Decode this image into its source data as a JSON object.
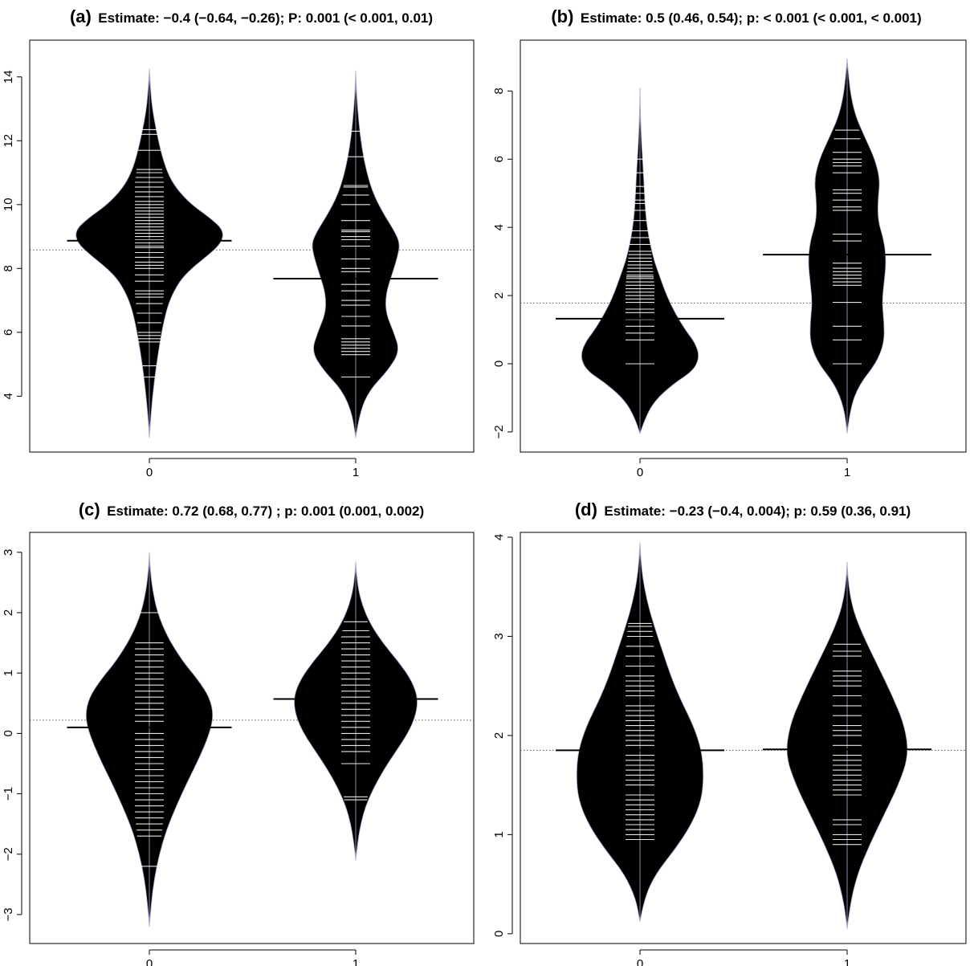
{
  "figure": {
    "background": "#ffffff",
    "violin_color": "#000000",
    "violin_outline_color": "#b9a5d6",
    "bean_line_color": "#ffffff",
    "dotted_line_color": "#555555"
  },
  "chart_data": [
    {
      "type": "beanplot",
      "panel": "(a)",
      "title": "Estimate: −0.4 (−0.64, −0.26); P: 0.001 (< 0.001, 0.01)",
      "categories": [
        "0",
        "1"
      ],
      "ylim": [
        2.4,
        15.0
      ],
      "yticks": [
        4,
        6,
        8,
        10,
        12,
        14
      ],
      "ytick_labels": [
        "4",
        "6",
        "8",
        "10",
        "12",
        "14"
      ],
      "overall_mean": 8.58,
      "group_means": [
        8.87,
        7.68
      ],
      "beans": [
        {
          "category": "0",
          "range": [
            2.7,
            14.25
          ],
          "density_y": [
            2.7,
            3.6,
            4.5,
            5.4,
            6.3,
            7.0,
            7.6,
            8.0,
            8.4,
            8.8,
            9.2,
            9.6,
            10.0,
            10.5,
            11.0,
            11.6,
            12.3,
            13.0,
            13.6,
            14.25
          ],
          "density_w": [
            0.0,
            0.02,
            0.05,
            0.09,
            0.14,
            0.2,
            0.3,
            0.42,
            0.58,
            0.72,
            0.74,
            0.6,
            0.42,
            0.27,
            0.18,
            0.12,
            0.07,
            0.03,
            0.012,
            0.0
          ],
          "observations": [
            4.6,
            4.95,
            5.7,
            5.8,
            5.9,
            6.0,
            6.3,
            6.6,
            6.9,
            7.1,
            7.2,
            7.3,
            7.6,
            7.8,
            8.0,
            8.1,
            8.2,
            8.35,
            8.5,
            8.65,
            8.7,
            8.8,
            8.9,
            9.0,
            9.1,
            9.2,
            9.3,
            9.4,
            9.5,
            9.6,
            9.7,
            9.8,
            9.9,
            10.0,
            10.1,
            10.25,
            10.4,
            10.55,
            10.7,
            10.85,
            11.0,
            11.1,
            11.7,
            12.2,
            12.35
          ]
        },
        {
          "category": "1",
          "range": [
            2.7,
            14.2
          ],
          "density_y": [
            2.7,
            3.5,
            4.2,
            4.8,
            5.4,
            6.0,
            6.6,
            7.2,
            7.8,
            8.4,
            8.8,
            9.2,
            9.7,
            10.3,
            11.0,
            11.8,
            12.6,
            13.4,
            14.2
          ],
          "density_w": [
            0.0,
            0.04,
            0.14,
            0.32,
            0.44,
            0.38,
            0.3,
            0.3,
            0.36,
            0.42,
            0.44,
            0.38,
            0.28,
            0.18,
            0.11,
            0.06,
            0.03,
            0.01,
            0.0
          ],
          "observations": [
            4.6,
            5.3,
            5.4,
            5.5,
            5.6,
            5.7,
            5.8,
            6.2,
            6.5,
            6.85,
            7.0,
            7.3,
            7.5,
            7.9,
            8.0,
            8.3,
            8.7,
            8.9,
            9.0,
            9.15,
            9.2,
            9.5,
            10.0,
            10.3,
            10.55,
            10.6,
            11.5,
            12.3
          ]
        }
      ]
    },
    {
      "type": "beanplot",
      "panel": "(b)",
      "title": "Estimate: 0.5 (0.46, 0.54); p: < 0.001 (< 0.001, < 0.001)",
      "categories": [
        "0",
        "1"
      ],
      "ylim": [
        -2.45,
        9.35
      ],
      "yticks": [
        -2,
        0,
        2,
        4,
        6,
        8
      ],
      "ytick_labels": [
        "−2",
        "0",
        "2",
        "4",
        "6",
        "8"
      ],
      "overall_mean": 1.78,
      "group_means": [
        1.32,
        3.2
      ],
      "beans": [
        {
          "category": "0",
          "range": [
            -2.05,
            8.1
          ],
          "density_y": [
            -2.05,
            -1.6,
            -1.1,
            -0.6,
            -0.2,
            0.2,
            0.6,
            1.0,
            1.5,
            2.0,
            2.5,
            3.0,
            3.5,
            4.0,
            4.6,
            5.2,
            5.8,
            6.5,
            7.3,
            8.1
          ],
          "density_w": [
            0.0,
            0.05,
            0.14,
            0.32,
            0.52,
            0.58,
            0.54,
            0.44,
            0.34,
            0.26,
            0.2,
            0.14,
            0.1,
            0.07,
            0.05,
            0.04,
            0.03,
            0.015,
            0.005,
            0.0
          ],
          "observations": [
            0.0,
            0.7,
            0.9,
            1.1,
            1.3,
            1.5,
            1.6,
            1.8,
            1.9,
            2.0,
            2.1,
            2.2,
            2.3,
            2.4,
            2.5,
            2.55,
            2.6,
            2.7,
            2.8,
            2.9,
            3.0,
            3.1,
            3.2,
            3.3,
            3.5,
            3.7,
            3.9,
            4.2,
            4.5,
            4.7,
            4.8,
            5.0,
            5.2,
            5.6,
            6.0
          ]
        },
        {
          "category": "1",
          "range": [
            -2.05,
            8.95
          ],
          "density_y": [
            -2.05,
            -1.3,
            -0.6,
            0.0,
            0.6,
            1.2,
            1.8,
            2.4,
            3.0,
            3.6,
            4.2,
            4.8,
            5.4,
            6.0,
            6.6,
            7.2,
            7.8,
            8.4,
            8.95
          ],
          "density_w": [
            0.0,
            0.03,
            0.12,
            0.28,
            0.36,
            0.36,
            0.34,
            0.36,
            0.38,
            0.36,
            0.3,
            0.3,
            0.32,
            0.27,
            0.18,
            0.09,
            0.04,
            0.015,
            0.0
          ],
          "observations": [
            0.0,
            0.7,
            1.1,
            1.8,
            2.3,
            2.4,
            2.5,
            2.6,
            2.7,
            2.8,
            2.95,
            3.2,
            3.6,
            3.8,
            4.5,
            4.6,
            4.8,
            5.0,
            5.1,
            5.6,
            5.8,
            5.9,
            6.0,
            6.2,
            6.6,
            6.85
          ]
        }
      ]
    },
    {
      "type": "beanplot",
      "panel": "(c)",
      "title": "Estimate: 0.72 (0.68, 0.77) ; p: 0.001 (0.001, 0.002)",
      "categories": [
        "0",
        "1"
      ],
      "ylim": [
        -3.4,
        3.25
      ],
      "yticks": [
        -3,
        -2,
        -1,
        0,
        1,
        2,
        3
      ],
      "ytick_labels": [
        "−3",
        "−2",
        "−1",
        "0",
        "1",
        "2",
        "3"
      ],
      "overall_mean": 0.22,
      "group_means": [
        0.1,
        0.57
      ],
      "beans": [
        {
          "category": "0",
          "range": [
            -3.2,
            3.0
          ],
          "density_y": [
            -3.2,
            -2.8,
            -2.4,
            -2.0,
            -1.6,
            -1.2,
            -0.8,
            -0.4,
            0.0,
            0.3,
            0.6,
            0.9,
            1.2,
            1.6,
            2.0,
            2.4,
            2.7,
            3.0
          ],
          "density_w": [
            0.0,
            0.02,
            0.05,
            0.1,
            0.17,
            0.27,
            0.38,
            0.5,
            0.6,
            0.64,
            0.6,
            0.48,
            0.33,
            0.18,
            0.08,
            0.03,
            0.01,
            0.0
          ],
          "observations": [
            -2.2,
            -1.7,
            -1.6,
            -1.5,
            -1.4,
            -1.3,
            -1.2,
            -1.1,
            -1.0,
            -0.9,
            -0.8,
            -0.7,
            -0.6,
            -0.5,
            -0.4,
            -0.3,
            -0.2,
            -0.1,
            0.0,
            0.1,
            0.2,
            0.3,
            0.4,
            0.5,
            0.6,
            0.7,
            0.8,
            0.9,
            1.0,
            1.1,
            1.2,
            1.3,
            1.4,
            1.5,
            2.0
          ]
        },
        {
          "category": "1",
          "range": [
            -2.1,
            2.85
          ],
          "density_y": [
            -2.1,
            -1.8,
            -1.5,
            -1.2,
            -0.9,
            -0.6,
            -0.3,
            0.0,
            0.3,
            0.6,
            0.9,
            1.2,
            1.5,
            1.8,
            2.1,
            2.4,
            2.65,
            2.85
          ],
          "density_w": [
            0.0,
            0.02,
            0.05,
            0.1,
            0.18,
            0.28,
            0.4,
            0.52,
            0.6,
            0.62,
            0.55,
            0.42,
            0.27,
            0.15,
            0.07,
            0.025,
            0.008,
            0.0
          ],
          "observations": [
            -1.1,
            -1.05,
            -0.5,
            -0.3,
            -0.2,
            -0.1,
            0.0,
            0.1,
            0.2,
            0.3,
            0.4,
            0.5,
            0.6,
            0.7,
            0.8,
            0.9,
            1.0,
            1.1,
            1.2,
            1.3,
            1.4,
            1.5,
            1.6,
            1.7,
            1.85
          ]
        }
      ]
    },
    {
      "type": "beanplot",
      "panel": "(d)",
      "title": "Estimate: −0.23 (−0.4, 0.004); p: 0.59 (0.36, 0.91)",
      "categories": [
        "0",
        "1"
      ],
      "ylim": [
        -0.05,
        4.0
      ],
      "yticks": [
        0,
        1,
        2,
        3,
        4
      ],
      "ytick_labels": [
        "0",
        "1",
        "2",
        "3",
        "4"
      ],
      "overall_mean": 1.85,
      "group_means": [
        1.85,
        1.86
      ],
      "beans": [
        {
          "category": "0",
          "range": [
            0.12,
            3.95
          ],
          "density_y": [
            0.12,
            0.35,
            0.6,
            0.85,
            1.1,
            1.35,
            1.6,
            1.85,
            2.1,
            2.35,
            2.6,
            2.85,
            3.1,
            3.35,
            3.6,
            3.8,
            3.95
          ],
          "density_w": [
            0.0,
            0.04,
            0.15,
            0.34,
            0.5,
            0.6,
            0.62,
            0.6,
            0.52,
            0.4,
            0.3,
            0.22,
            0.14,
            0.07,
            0.025,
            0.008,
            0.0
          ],
          "observations": [
            0.95,
            1.0,
            1.05,
            1.1,
            1.15,
            1.2,
            1.25,
            1.3,
            1.35,
            1.4,
            1.5,
            1.55,
            1.6,
            1.65,
            1.7,
            1.75,
            1.8,
            1.85,
            1.9,
            1.95,
            2.0,
            2.05,
            2.1,
            2.15,
            2.2,
            2.25,
            2.3,
            2.4,
            2.45,
            2.5,
            2.55,
            2.6,
            2.7,
            2.8,
            2.9,
            3.0,
            3.05,
            3.1,
            3.13
          ]
        },
        {
          "category": "1",
          "range": [
            0.05,
            3.75
          ],
          "density_y": [
            0.05,
            0.3,
            0.6,
            0.9,
            1.2,
            1.5,
            1.8,
            2.1,
            2.4,
            2.7,
            3.0,
            3.2,
            3.4,
            3.6,
            3.75
          ],
          "density_w": [
            0.0,
            0.03,
            0.1,
            0.22,
            0.36,
            0.5,
            0.6,
            0.56,
            0.44,
            0.3,
            0.16,
            0.08,
            0.03,
            0.008,
            0.0
          ],
          "observations": [
            0.9,
            0.95,
            1.0,
            1.1,
            1.15,
            1.4,
            1.45,
            1.5,
            1.55,
            1.6,
            1.65,
            1.7,
            1.75,
            1.8,
            1.9,
            2.0,
            2.05,
            2.1,
            2.2,
            2.3,
            2.4,
            2.5,
            2.55,
            2.6,
            2.65,
            2.8,
            2.85,
            2.92
          ]
        }
      ]
    }
  ]
}
